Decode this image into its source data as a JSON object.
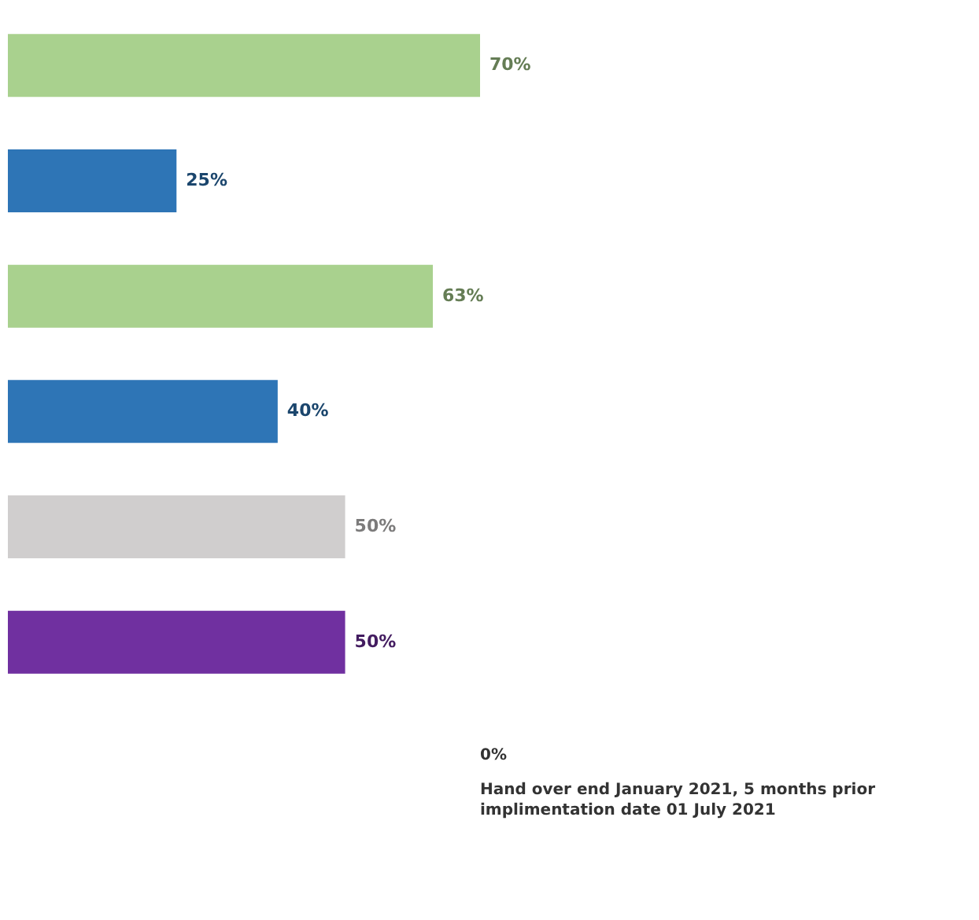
{
  "chart_data": {
    "type": "bar",
    "orientation": "horizontal",
    "categories": [
      null,
      null,
      null,
      null,
      null,
      null
    ],
    "values": [
      70,
      25,
      63,
      40,
      50,
      50
    ],
    "colors": [
      "#a9d18e",
      "#2e75b6",
      "#a9d18e",
      "#2e75b6",
      "#d0cece",
      "#7030a0"
    ],
    "value_labels": [
      "70%",
      "25%",
      "63%",
      "40%",
      "50%",
      "50%"
    ],
    "annotations": [
      "0%",
      "Hand over end January 2021, 5 months prior implimentation date 01 July 2021"
    ],
    "tick_labels": false
  }
}
